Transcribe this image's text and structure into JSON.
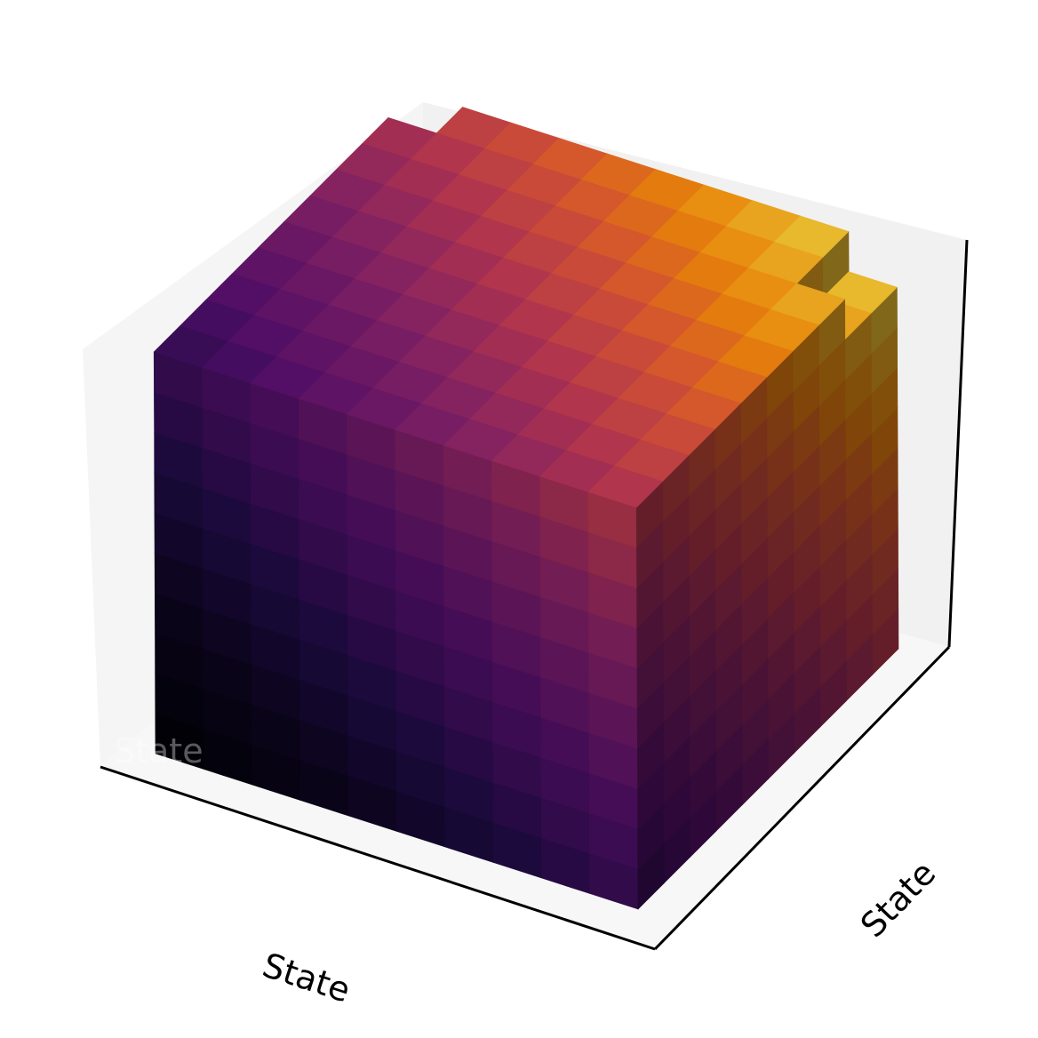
{
  "chart_data": {
    "type": "voxel-3d",
    "title": "",
    "xlabel": "State",
    "ylabel": "State",
    "zlabel": "State",
    "grid": false,
    "colormap": "inferno",
    "shape": [
      10,
      10,
      10
    ],
    "missing_voxels": [
      [
        0,
        9,
        9
      ],
      [
        9,
        9,
        9
      ],
      [
        9,
        8,
        9
      ]
    ],
    "colors": {
      "pane_back": "#f1f1f1",
      "pane_side": "#f5f5f5",
      "pane_floor": "#f7f7f7",
      "axis_line": "#000000"
    }
  }
}
